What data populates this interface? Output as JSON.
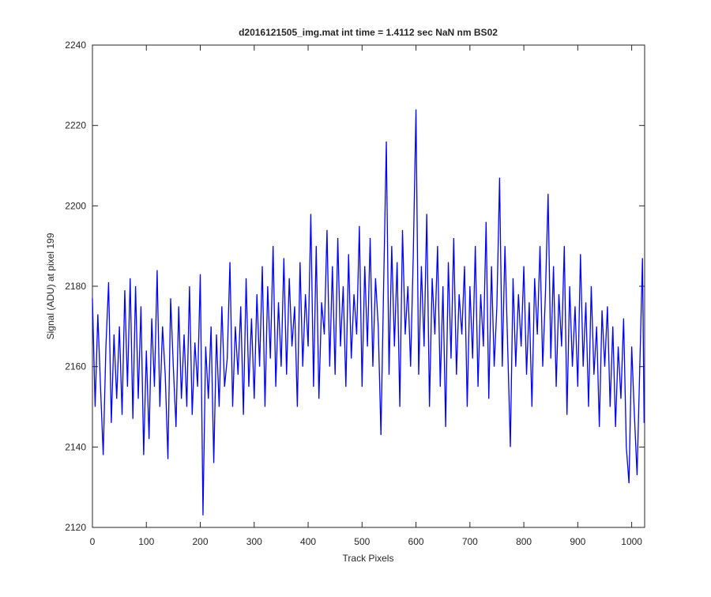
{
  "chart_data": {
    "type": "line",
    "title": "d2016121505_img.mat int time = 1.4112 sec  NaN nm BS02",
    "x_label": "Track Pixels",
    "y_label": "Signal (ADU) at pixel 199",
    "xlim": [
      0,
      1024
    ],
    "ylim": [
      2120,
      2240
    ],
    "xticks": [
      0,
      100,
      200,
      300,
      400,
      500,
      600,
      700,
      800,
      900,
      1000
    ],
    "yticks": [
      2120,
      2140,
      2160,
      2180,
      2200,
      2220,
      2240
    ],
    "x": [
      0,
      5,
      10,
      15,
      20,
      25,
      30,
      35,
      40,
      45,
      50,
      55,
      60,
      65,
      70,
      75,
      80,
      85,
      90,
      95,
      100,
      105,
      110,
      115,
      120,
      125,
      130,
      135,
      140,
      145,
      150,
      155,
      160,
      165,
      170,
      175,
      180,
      185,
      190,
      195,
      200,
      205,
      210,
      215,
      220,
      225,
      230,
      235,
      240,
      245,
      250,
      255,
      260,
      265,
      270,
      275,
      280,
      285,
      290,
      295,
      300,
      305,
      310,
      315,
      320,
      325,
      330,
      335,
      340,
      345,
      350,
      355,
      360,
      365,
      370,
      375,
      380,
      385,
      390,
      395,
      400,
      405,
      410,
      415,
      420,
      425,
      430,
      435,
      440,
      445,
      450,
      455,
      460,
      465,
      470,
      475,
      480,
      485,
      490,
      495,
      500,
      505,
      510,
      515,
      520,
      525,
      530,
      535,
      540,
      545,
      550,
      555,
      560,
      565,
      570,
      575,
      580,
      585,
      590,
      595,
      600,
      605,
      610,
      615,
      620,
      625,
      630,
      635,
      640,
      645,
      650,
      655,
      660,
      665,
      670,
      675,
      680,
      685,
      690,
      695,
      700,
      705,
      710,
      715,
      720,
      725,
      730,
      735,
      740,
      745,
      750,
      755,
      760,
      765,
      770,
      775,
      780,
      785,
      790,
      795,
      800,
      805,
      810,
      815,
      820,
      825,
      830,
      835,
      840,
      845,
      850,
      855,
      860,
      865,
      870,
      875,
      880,
      885,
      890,
      895,
      900,
      905,
      910,
      915,
      920,
      925,
      930,
      935,
      940,
      945,
      950,
      955,
      960,
      965,
      970,
      975,
      980,
      985,
      990,
      995,
      1000,
      1005,
      1010,
      1015,
      1020,
      1023
    ],
    "series": [
      {
        "name": "signal",
        "color": "#0000ff",
        "values": [
          2177,
          2150,
          2173,
          2155,
          2138,
          2165,
          2181,
          2146,
          2168,
          2152,
          2170,
          2148,
          2179,
          2155,
          2182,
          2147,
          2180,
          2152,
          2175,
          2138,
          2164,
          2142,
          2172,
          2155,
          2184,
          2150,
          2170,
          2158,
          2137,
          2177,
          2160,
          2145,
          2175,
          2152,
          2168,
          2150,
          2180,
          2148,
          2166,
          2155,
          2183,
          2123,
          2165,
          2152,
          2170,
          2136,
          2168,
          2150,
          2175,
          2155,
          2162,
          2186,
          2150,
          2170,
          2158,
          2175,
          2148,
          2182,
          2155,
          2172,
          2152,
          2178,
          2160,
          2185,
          2150,
          2180,
          2162,
          2190,
          2155,
          2176,
          2160,
          2187,
          2158,
          2182,
          2165,
          2175,
          2150,
          2186,
          2160,
          2178,
          2165,
          2198,
          2155,
          2190,
          2152,
          2176,
          2168,
          2194,
          2160,
          2185,
          2158,
          2192,
          2165,
          2180,
          2155,
          2188,
          2162,
          2178,
          2168,
          2195,
          2155,
          2185,
          2165,
          2192,
          2160,
          2182,
          2170,
          2143,
          2180,
          2216,
          2158,
          2190,
          2165,
          2186,
          2150,
          2194,
          2168,
          2180,
          2160,
          2188,
          2224,
          2158,
          2185,
          2165,
          2198,
          2150,
          2182,
          2168,
          2190,
          2155,
          2180,
          2145,
          2186,
          2162,
          2192,
          2158,
          2178,
          2168,
          2185,
          2150,
          2180,
          2162,
          2190,
          2155,
          2178,
          2165,
          2196,
          2152,
          2185,
          2160,
          2175,
          2207,
          2160,
          2190,
          2165,
          2140,
          2182,
          2160,
          2178,
          2165,
          2185,
          2158,
          2176,
          2150,
          2182,
          2168,
          2190,
          2160,
          2178,
          2203,
          2162,
          2185,
          2155,
          2178,
          2165,
          2190,
          2148,
          2180,
          2160,
          2175,
          2155,
          2188,
          2160,
          2176,
          2150,
          2180,
          2158,
          2170,
          2145,
          2174,
          2160,
          2175,
          2150,
          2170,
          2145,
          2165,
          2152,
          2172,
          2140,
          2131,
          2165,
          2148,
          2133,
          2160,
          2187,
          2146
        ]
      }
    ]
  }
}
